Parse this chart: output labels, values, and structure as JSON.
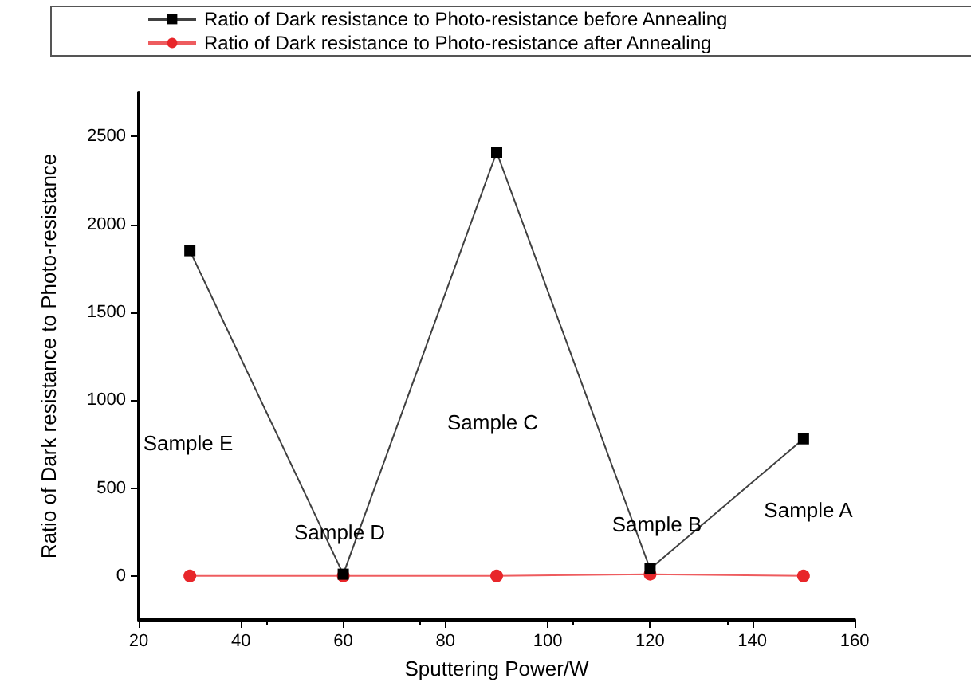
{
  "chart_data": {
    "type": "line",
    "xlabel": "Sputtering Power/W",
    "ylabel": "Ratio of Dark resistance to Photo-resistance",
    "x": [
      30,
      60,
      90,
      120,
      150
    ],
    "series": [
      {
        "name": "Ratio of Dark resistance to Photo-resistance before Annealing",
        "color": "#000000",
        "marker": "square",
        "values": [
          1850,
          10,
          2410,
          40,
          780
        ]
      },
      {
        "name": "Ratio of Dark resistance to Photo-resistance after Annealing",
        "color": "#e8262a",
        "marker": "circle",
        "values": [
          0,
          0,
          0,
          10,
          0
        ]
      }
    ],
    "xlim": [
      20,
      160
    ],
    "xticks": [
      20,
      40,
      60,
      80,
      100,
      120,
      140,
      160
    ],
    "ylim": [
      -250,
      2750
    ],
    "yticks": [
      0,
      500,
      1000,
      1500,
      2000,
      2500
    ],
    "annotations": [
      "Sample E",
      "Sample D",
      "Sample C",
      "Sample B",
      "Sample A"
    ],
    "grid": false,
    "legend": "top",
    "line_style": "solid"
  }
}
